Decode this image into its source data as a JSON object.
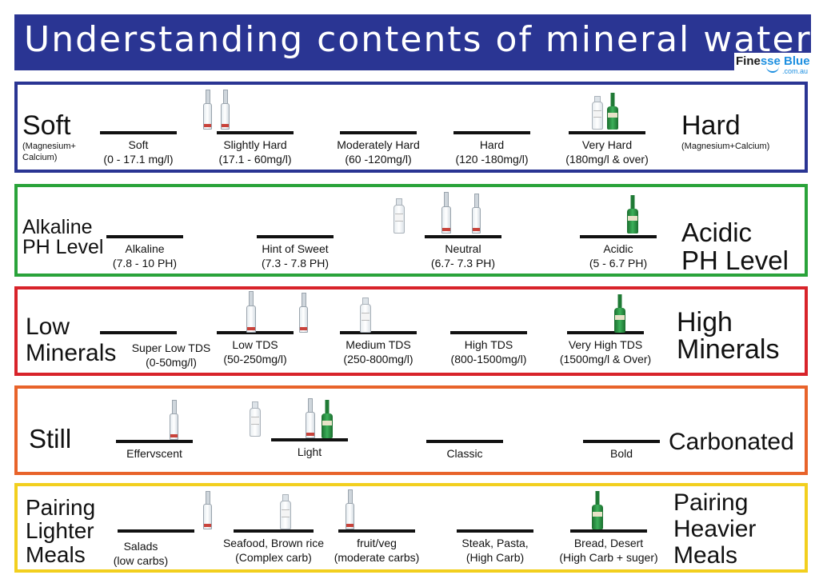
{
  "header": {
    "title": "Understanding contents of mineral waters"
  },
  "logo": {
    "brand_a": "Fine",
    "brand_b": "sse Blue",
    "domain": ".com.au"
  },
  "colors": {
    "banner": "#2a3593",
    "hardness": "#2a3593",
    "ph": "#2aa33a",
    "minerals": "#d8232a",
    "carbonation": "#e8632a",
    "pairing": "#f2cf1e"
  },
  "hardness": {
    "left": "Soft",
    "left_sub": "(Magnesium+\nCalcium)",
    "right": "Hard",
    "right_sub": "(Magnesium+Calcium)",
    "markers": [
      {
        "name": "Soft",
        "range": "(0 - 17.1 mg/l)"
      },
      {
        "name": "Slightly Hard",
        "range": "(17.1 - 60mg/l)"
      },
      {
        "name": "Moderately Hard",
        "range": "(60 -120mg/l)"
      },
      {
        "name": "Hard",
        "range": "(120 -180mg/l)"
      },
      {
        "name": "Very Hard",
        "range": "(180mg/l & over)"
      }
    ]
  },
  "ph": {
    "left": "Alkaline\nPH Level",
    "right": "Acidic\nPH Level",
    "markers": [
      {
        "name": "Alkaline",
        "range": "(7.8 - 10 PH)"
      },
      {
        "name": "Hint of Sweet",
        "range": "(7.3 - 7.8 PH)"
      },
      {
        "name": "Neutral",
        "range": "(6.7- 7.3 PH)"
      },
      {
        "name": "Acidic",
        "range": "(5 - 6.7 PH)"
      }
    ]
  },
  "minerals": {
    "left": "Low\nMinerals",
    "right": "High\nMinerals",
    "markers": [
      {
        "name": "Super Low TDS",
        "range": "(0-50mg/l)"
      },
      {
        "name": "Low TDS",
        "range": "(50-250mg/l)"
      },
      {
        "name": "Medium TDS",
        "range": "(250-800mg/l)"
      },
      {
        "name": "High TDS",
        "range": "(800-1500mg/l)"
      },
      {
        "name": "Very High TDS",
        "range": "(1500mg/l & Over)"
      }
    ]
  },
  "carbonation": {
    "left": "Still",
    "right": "Carbonated",
    "markers": [
      {
        "name": "Effervscent"
      },
      {
        "name": "Light"
      },
      {
        "name": "Classic"
      },
      {
        "name": "Bold"
      }
    ]
  },
  "pairing": {
    "left": "Pairing\nLighter\nMeals",
    "right": "Pairing\nHeavier\nMeals",
    "markers": [
      {
        "name": "Salads",
        "range": "(low carbs)"
      },
      {
        "name": "Seafood, Brown rice",
        "range": "(Complex carb)"
      },
      {
        "name": "fruit/veg",
        "range": "(moderate carbs)"
      },
      {
        "name": "Steak, Pasta,",
        "range": "(High Carb)"
      },
      {
        "name": "Bread, Desert",
        "range": "(High Carb + suger)"
      }
    ]
  }
}
